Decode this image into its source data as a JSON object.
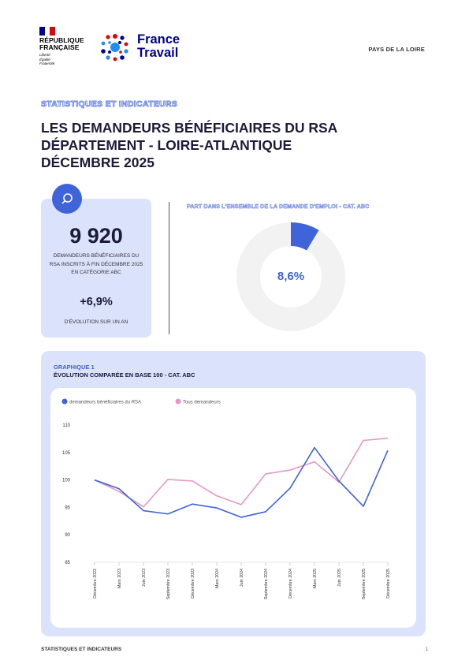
{
  "header": {
    "republic_name": "RÉPUBLIQUE\nFRANÇAISE",
    "republic_motto": "Liberté\nÉgalité\nFraternité",
    "brand_line1": "France",
    "brand_line2": "Travail",
    "region": "PAYS DE LA LOIRE"
  },
  "section_tag": "STATISTIQUES ET INDICATEURS",
  "title": {
    "line1": "LES DEMANDEURS BÉNÉFICIAIRES DU RSA",
    "line2": "DÉPARTEMENT - LOIRE-ATLANTIQUE",
    "line3": "DÉCEMBRE 2025"
  },
  "kpi": {
    "value": "9 920",
    "label": "DEMANDEURS BÉNÉFICIAIRES DU RSA INSCRITS À FIN DÉCEMBRE 2025 EN CATÉGORIE ABC",
    "evolution": "+6,9%",
    "evolution_label": "D'ÉVOLUTION SUR UN AN",
    "icon": "search-icon"
  },
  "share": {
    "title": "PART DANS L'ENSEMBLE DE LA DEMANDE D'EMPLOI - CAT. ABC",
    "value_label": "8,6%",
    "value": 8.6,
    "fill_color": "#3f63d9",
    "track_color": "#f2f2f2"
  },
  "chart": {
    "kicker": "GRAPHIQUE 1",
    "title": "ÉVOLUTION COMPARÉE EN BASE 100 - CAT. ABC"
  },
  "chart_data": {
    "type": "line",
    "categories": [
      "Décembre 2022",
      "Mars 2023",
      "Juin 2023",
      "Septembre 2023",
      "Décembre 2023",
      "Mars 2024",
      "Juin 2024",
      "Septembre 2024",
      "Décembre 2024",
      "Mars 2025",
      "Juin 2025",
      "Septembre 2025",
      "Décembre 2025"
    ],
    "series": [
      {
        "name": "demandeurs bénéficiaires du RSA",
        "color": "#3f63d9",
        "values": [
          100,
          98.4,
          94.4,
          93.8,
          95.6,
          94.9,
          93.2,
          94.2,
          98.5,
          105.9,
          99.8,
          95.2,
          105.4
        ]
      },
      {
        "name": "Tous demandeurs",
        "color": "#e896c4",
        "values": [
          100,
          97.9,
          95.1,
          100.1,
          99.8,
          97.1,
          95.5,
          101.1,
          101.8,
          103.3,
          99.6,
          107.2,
          107.6
        ]
      }
    ],
    "yticks": [
      85,
      90,
      95,
      100,
      105,
      110
    ],
    "ylim": [
      85,
      110
    ],
    "grid": false,
    "legend": "top-left"
  },
  "footer": {
    "left": "STATISTIQUES ET INDICATEURS",
    "page": "1"
  }
}
